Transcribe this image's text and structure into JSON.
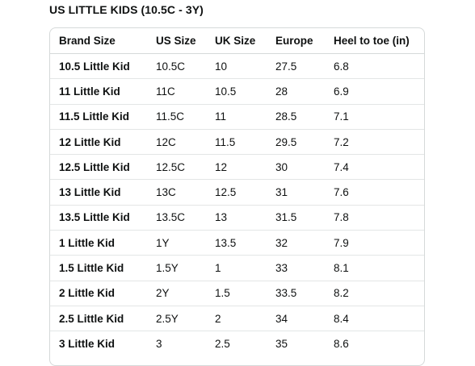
{
  "section_title": "US LITTLE KIDS (10.5C - 3Y)",
  "size_chart": {
    "columns": [
      "Brand Size",
      "US Size",
      "UK Size",
      "Europe",
      "Heel to toe (in)"
    ],
    "rows": [
      {
        "brand": "10.5 Little Kid",
        "us": "10.5C",
        "uk": "10",
        "eu": "27.5",
        "heel_toe": "6.8"
      },
      {
        "brand": "11 Little Kid",
        "us": "11C",
        "uk": "10.5",
        "eu": "28",
        "heel_toe": "6.9"
      },
      {
        "brand": "11.5 Little Kid",
        "us": "11.5C",
        "uk": "11",
        "eu": "28.5",
        "heel_toe": "7.1"
      },
      {
        "brand": "12 Little Kid",
        "us": "12C",
        "uk": "11.5",
        "eu": "29.5",
        "heel_toe": "7.2"
      },
      {
        "brand": "12.5 Little Kid",
        "us": "12.5C",
        "uk": "12",
        "eu": "30",
        "heel_toe": "7.4"
      },
      {
        "brand": "13 Little Kid",
        "us": "13C",
        "uk": "12.5",
        "eu": "31",
        "heel_toe": "7.6"
      },
      {
        "brand": "13.5 Little Kid",
        "us": "13.5C",
        "uk": "13",
        "eu": "31.5",
        "heel_toe": "7.8"
      },
      {
        "brand": "1 Little Kid",
        "us": "1Y",
        "uk": "13.5",
        "eu": "32",
        "heel_toe": "7.9"
      },
      {
        "brand": "1.5 Little Kid",
        "us": "1.5Y",
        "uk": "1",
        "eu": "33",
        "heel_toe": "8.1"
      },
      {
        "brand": "2 Little Kid",
        "us": "2Y",
        "uk": "1.5",
        "eu": "33.5",
        "heel_toe": "8.2"
      },
      {
        "brand": "2.5 Little Kid",
        "us": "2.5Y",
        "uk": "2",
        "eu": "34",
        "heel_toe": "8.4"
      },
      {
        "brand": "3 Little Kid",
        "us": "3",
        "uk": "2.5",
        "eu": "35",
        "heel_toe": "8.6"
      }
    ]
  },
  "colors": {
    "text": "#0f1111",
    "border": "#d5d9d9",
    "row_divider": "#e3e6e6",
    "background": "#ffffff"
  }
}
